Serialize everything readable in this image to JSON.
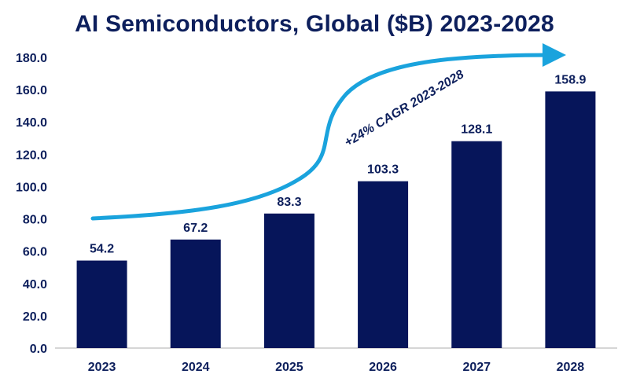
{
  "chart_data": {
    "type": "bar",
    "title": "AI Semiconductors, Global ($B) 2023-2028",
    "categories": [
      "2023",
      "2024",
      "2025",
      "2026",
      "2027",
      "2028"
    ],
    "values": [
      54.2,
      67.2,
      83.3,
      103.3,
      128.1,
      158.9
    ],
    "data_labels": [
      "54.2",
      "67.2",
      "83.3",
      "103.3",
      "128.1",
      "158.9"
    ],
    "y_ticks": [
      "0.0",
      "20.0",
      "40.0",
      "60.0",
      "80.0",
      "100.0",
      "120.0",
      "140.0",
      "160.0",
      "180.0"
    ],
    "ylim": [
      0,
      180
    ],
    "xlabel": "",
    "ylabel": "",
    "grid": false,
    "legend": "none",
    "annotation": "+24% CAGR 2023-2028",
    "colors": {
      "bar": "#06155a",
      "arrow": "#1aa3dd",
      "text": "#0d1f5c",
      "axis": "#c8c8c8"
    }
  }
}
